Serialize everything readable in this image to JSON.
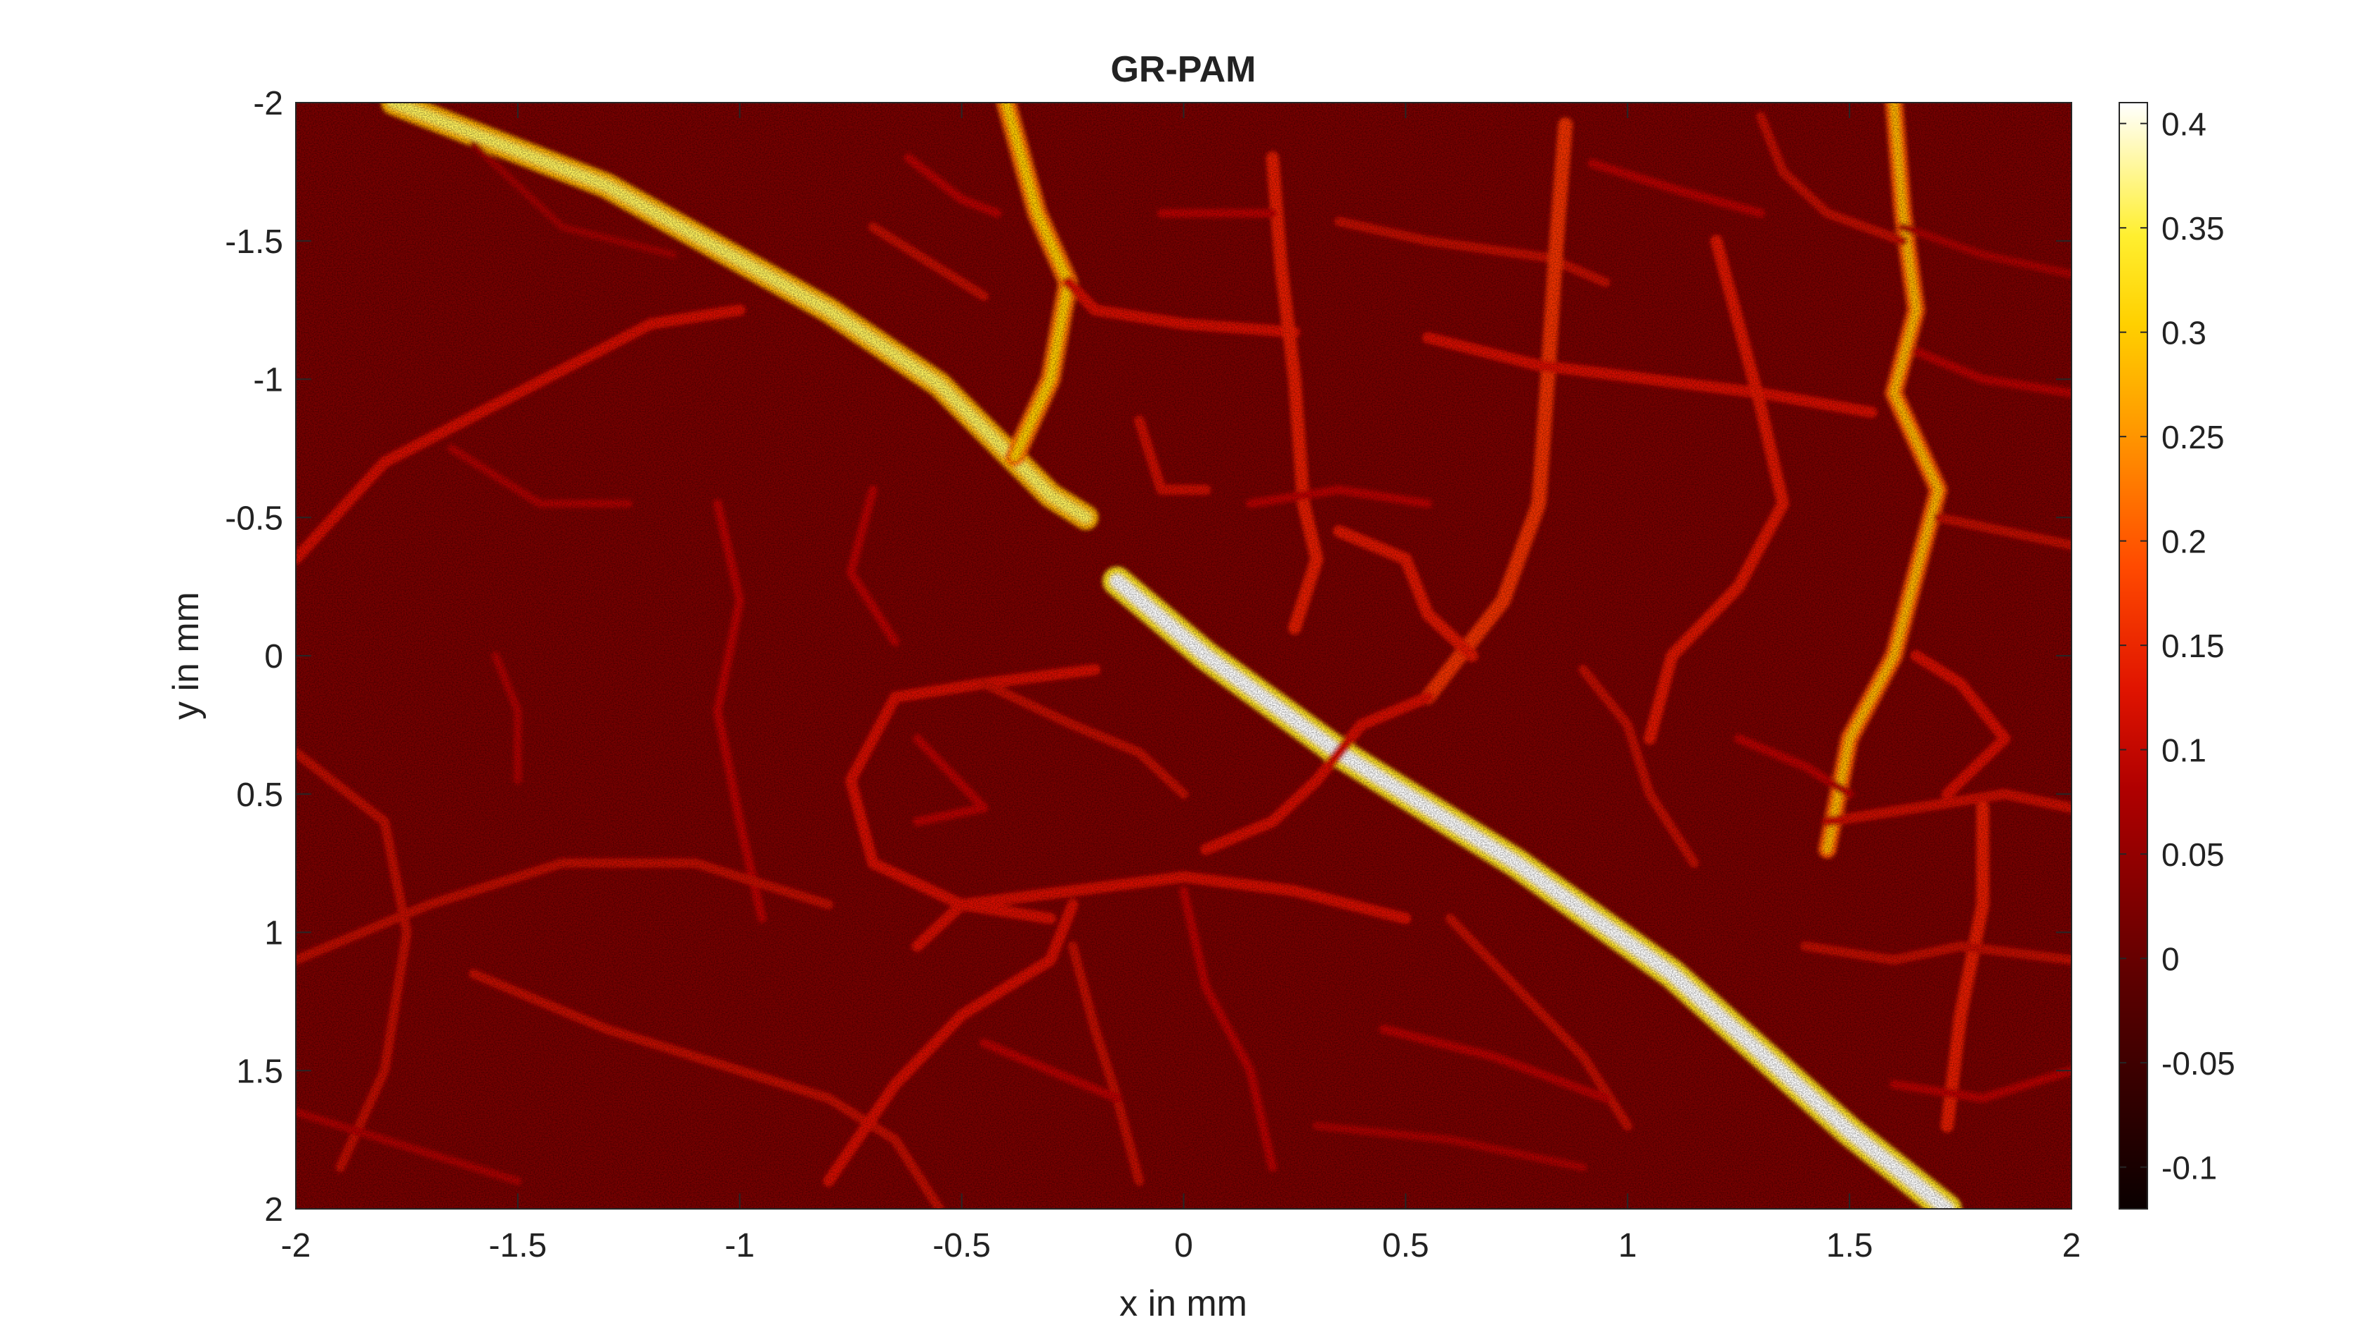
{
  "chart_data": {
    "type": "heatmap",
    "title": "GR-PAM",
    "xlabel": "x in mm",
    "ylabel": "y in mm",
    "xlim": [
      -2,
      2
    ],
    "ylim": [
      -2,
      2
    ],
    "y_direction": "reversed",
    "x_ticks": [
      -2,
      -1.5,
      -1,
      -0.5,
      0,
      0.5,
      1,
      1.5,
      2
    ],
    "y_ticks": [
      -2,
      -1.5,
      -1,
      -0.5,
      0,
      0.5,
      1,
      1.5,
      2
    ],
    "x_tick_labels": [
      "-2",
      "-1.5",
      "-1",
      "-0.5",
      "0",
      "0.5",
      "1",
      "1.5",
      "2"
    ],
    "y_tick_labels": [
      "-2",
      "-1.5",
      "-1",
      "-0.5",
      "0",
      "0.5",
      "1",
      "1.5",
      "2"
    ],
    "colormap": "hot",
    "colorbar": {
      "limits": [
        -0.12,
        0.41
      ],
      "ticks": [
        -0.1,
        -0.05,
        0,
        0.05,
        0.1,
        0.15,
        0.2,
        0.25,
        0.3,
        0.35,
        0.4
      ],
      "tick_labels": [
        "-0.1",
        "-0.05",
        "0",
        "0.05",
        "0.1",
        "0.15",
        "0.2",
        "0.25",
        "0.3",
        "0.35",
        "0.4"
      ]
    },
    "background_value": 0.02,
    "vessels": [
      {
        "points": [
          [
            -1.78,
            -2.0
          ],
          [
            -1.3,
            -1.7
          ],
          [
            -0.8,
            -1.25
          ],
          [
            -0.55,
            -0.98
          ],
          [
            -0.3,
            -0.58
          ],
          [
            -0.22,
            -0.5
          ]
        ],
        "value": 0.28
      },
      {
        "points": [
          [
            -0.15,
            -0.27
          ],
          [
            0.05,
            0.0
          ],
          [
            0.35,
            0.35
          ],
          [
            0.75,
            0.75
          ],
          [
            1.1,
            1.15
          ],
          [
            1.5,
            1.72
          ],
          [
            1.72,
            2.0
          ]
        ],
        "value": 0.33
      },
      {
        "points": [
          [
            -0.4,
            -2.0
          ],
          [
            -0.33,
            -1.6
          ],
          [
            -0.26,
            -1.35
          ],
          [
            -0.3,
            -1.0
          ],
          [
            -0.38,
            -0.72
          ]
        ],
        "value": 0.22
      },
      {
        "points": [
          [
            -0.26,
            -1.35
          ],
          [
            -0.2,
            -1.25
          ],
          [
            0.0,
            -1.2
          ],
          [
            0.25,
            -1.17
          ]
        ],
        "value": 0.12
      },
      {
        "points": [
          [
            -0.7,
            -1.55
          ],
          [
            -0.55,
            -1.4
          ],
          [
            -0.45,
            -1.3
          ]
        ],
        "value": 0.1
      },
      {
        "points": [
          [
            -0.62,
            -1.8
          ],
          [
            -0.5,
            -1.65
          ],
          [
            -0.42,
            -1.6
          ]
        ],
        "value": 0.09
      },
      {
        "points": [
          [
            0.2,
            -1.8
          ],
          [
            0.22,
            -1.4
          ],
          [
            0.25,
            -1.0
          ],
          [
            0.27,
            -0.55
          ],
          [
            0.3,
            -0.35
          ],
          [
            0.25,
            -0.1
          ]
        ],
        "value": 0.14
      },
      {
        "points": [
          [
            -0.05,
            -1.6
          ],
          [
            0.2,
            -1.6
          ]
        ],
        "value": 0.09
      },
      {
        "points": [
          [
            0.35,
            -1.57
          ],
          [
            0.55,
            -1.5
          ],
          [
            0.82,
            -1.44
          ],
          [
            0.95,
            -1.35
          ]
        ],
        "value": 0.1
      },
      {
        "points": [
          [
            0.86,
            -1.92
          ],
          [
            0.84,
            -1.5
          ],
          [
            0.82,
            -1.0
          ],
          [
            0.8,
            -0.55
          ],
          [
            0.72,
            -0.2
          ],
          [
            0.55,
            0.15
          ]
        ],
        "value": 0.16
      },
      {
        "points": [
          [
            0.55,
            -1.15
          ],
          [
            0.8,
            -1.05
          ],
          [
            1.05,
            -1.0
          ],
          [
            1.3,
            -0.95
          ],
          [
            1.55,
            -0.88
          ]
        ],
        "value": 0.12
      },
      {
        "points": [
          [
            1.6,
            -2.0
          ],
          [
            1.62,
            -1.6
          ],
          [
            1.65,
            -1.25
          ],
          [
            1.6,
            -0.95
          ],
          [
            1.7,
            -0.6
          ],
          [
            1.65,
            -0.3
          ],
          [
            1.6,
            0.0
          ],
          [
            1.5,
            0.3
          ],
          [
            1.45,
            0.7
          ]
        ],
        "value": 0.2
      },
      {
        "points": [
          [
            1.3,
            -1.95
          ],
          [
            1.35,
            -1.75
          ],
          [
            1.45,
            -1.6
          ],
          [
            1.62,
            -1.5
          ]
        ],
        "value": 0.1
      },
      {
        "points": [
          [
            0.92,
            -1.78
          ],
          [
            1.12,
            -1.68
          ],
          [
            1.3,
            -1.6
          ]
        ],
        "value": 0.09
      },
      {
        "points": [
          [
            1.2,
            -1.5
          ],
          [
            1.25,
            -1.2
          ],
          [
            1.3,
            -0.9
          ],
          [
            1.35,
            -0.55
          ],
          [
            1.25,
            -0.25
          ],
          [
            1.1,
            0.0
          ],
          [
            1.05,
            0.3
          ]
        ],
        "value": 0.13
      },
      {
        "points": [
          [
            1.7,
            -0.5
          ],
          [
            1.85,
            -0.45
          ],
          [
            2.0,
            -0.4
          ]
        ],
        "value": 0.1
      },
      {
        "points": [
          [
            1.62,
            -1.55
          ],
          [
            1.8,
            -1.45
          ],
          [
            2.0,
            -1.38
          ]
        ],
        "value": 0.08
      },
      {
        "points": [
          [
            1.65,
            -1.1
          ],
          [
            1.8,
            -1.0
          ],
          [
            2.0,
            -0.95
          ]
        ],
        "value": 0.09
      },
      {
        "points": [
          [
            -2.0,
            -0.35
          ],
          [
            -1.8,
            -0.7
          ],
          [
            -1.5,
            -0.95
          ],
          [
            -1.2,
            -1.2
          ],
          [
            -1.0,
            -1.25
          ]
        ],
        "value": 0.12
      },
      {
        "points": [
          [
            -1.65,
            -0.75
          ],
          [
            -1.45,
            -0.55
          ],
          [
            -1.25,
            -0.55
          ]
        ],
        "value": 0.08
      },
      {
        "points": [
          [
            -1.6,
            -1.85
          ],
          [
            -1.4,
            -1.55
          ],
          [
            -1.15,
            -1.45
          ]
        ],
        "value": 0.07
      },
      {
        "points": [
          [
            -1.05,
            -0.55
          ],
          [
            -1.0,
            -0.2
          ],
          [
            -1.05,
            0.2
          ],
          [
            -1.0,
            0.6
          ],
          [
            -0.95,
            0.95
          ]
        ],
        "value": 0.09
      },
      {
        "points": [
          [
            -2.0,
            1.1
          ],
          [
            -1.7,
            0.9
          ],
          [
            -1.4,
            0.75
          ],
          [
            -1.1,
            0.75
          ],
          [
            -0.8,
            0.9
          ]
        ],
        "value": 0.1
      },
      {
        "points": [
          [
            -2.0,
            0.35
          ],
          [
            -1.8,
            0.6
          ],
          [
            -1.75,
            1.0
          ],
          [
            -1.8,
            1.5
          ],
          [
            -1.9,
            1.85
          ]
        ],
        "value": 0.1
      },
      {
        "points": [
          [
            -1.55,
            0.0
          ],
          [
            -1.5,
            0.2
          ],
          [
            -1.5,
            0.45
          ]
        ],
        "value": 0.08
      },
      {
        "points": [
          [
            -1.6,
            1.15
          ],
          [
            -1.3,
            1.35
          ],
          [
            -1.0,
            1.5
          ],
          [
            -0.8,
            1.6
          ],
          [
            -0.65,
            1.75
          ],
          [
            -0.55,
            2.0
          ]
        ],
        "value": 0.1
      },
      {
        "points": [
          [
            -2.0,
            1.65
          ],
          [
            -1.7,
            1.8
          ],
          [
            -1.5,
            1.9
          ]
        ],
        "value": 0.08
      },
      {
        "points": [
          [
            -0.2,
            0.05
          ],
          [
            -0.45,
            0.1
          ],
          [
            -0.65,
            0.15
          ],
          [
            -0.75,
            0.45
          ],
          [
            -0.7,
            0.75
          ],
          [
            -0.5,
            0.9
          ],
          [
            -0.3,
            0.95
          ]
        ],
        "value": 0.12
      },
      {
        "points": [
          [
            -0.45,
            0.1
          ],
          [
            -0.25,
            0.25
          ],
          [
            -0.1,
            0.35
          ],
          [
            0.0,
            0.5
          ]
        ],
        "value": 0.1
      },
      {
        "points": [
          [
            -0.6,
            0.3
          ],
          [
            -0.45,
            0.55
          ],
          [
            -0.6,
            0.6
          ]
        ],
        "value": 0.09
      },
      {
        "points": [
          [
            -0.6,
            1.05
          ],
          [
            -0.5,
            0.9
          ],
          [
            -0.25,
            0.85
          ],
          [
            0.0,
            0.8
          ],
          [
            0.25,
            0.85
          ],
          [
            0.5,
            0.95
          ]
        ],
        "value": 0.12
      },
      {
        "points": [
          [
            -0.8,
            1.9
          ],
          [
            -0.65,
            1.55
          ],
          [
            -0.5,
            1.3
          ],
          [
            -0.3,
            1.1
          ],
          [
            -0.25,
            0.9
          ]
        ],
        "value": 0.12
      },
      {
        "points": [
          [
            -0.25,
            1.05
          ],
          [
            -0.2,
            1.35
          ],
          [
            -0.15,
            1.6
          ],
          [
            -0.1,
            1.9
          ]
        ],
        "value": 0.1
      },
      {
        "points": [
          [
            -0.45,
            1.4
          ],
          [
            -0.3,
            1.5
          ],
          [
            -0.15,
            1.6
          ]
        ],
        "value": 0.09
      },
      {
        "points": [
          [
            0.0,
            0.85
          ],
          [
            0.05,
            1.2
          ],
          [
            0.15,
            1.5
          ],
          [
            0.2,
            1.85
          ]
        ],
        "value": 0.09
      },
      {
        "points": [
          [
            0.6,
            0.95
          ],
          [
            0.75,
            1.2
          ],
          [
            0.9,
            1.45
          ],
          [
            1.0,
            1.7
          ]
        ],
        "value": 0.1
      },
      {
        "points": [
          [
            0.45,
            1.35
          ],
          [
            0.7,
            1.45
          ],
          [
            0.95,
            1.6
          ]
        ],
        "value": 0.09
      },
      {
        "points": [
          [
            0.3,
            1.7
          ],
          [
            0.6,
            1.75
          ],
          [
            0.9,
            1.85
          ]
        ],
        "value": 0.08
      },
      {
        "points": [
          [
            0.35,
            -0.45
          ],
          [
            0.5,
            -0.35
          ],
          [
            0.55,
            -0.15
          ],
          [
            0.65,
            0.0
          ]
        ],
        "value": 0.13
      },
      {
        "points": [
          [
            0.15,
            -0.55
          ],
          [
            0.35,
            -0.6
          ],
          [
            0.55,
            -0.55
          ]
        ],
        "value": 0.09
      },
      {
        "points": [
          [
            0.55,
            0.15
          ],
          [
            0.4,
            0.25
          ],
          [
            0.3,
            0.45
          ],
          [
            0.2,
            0.6
          ],
          [
            0.05,
            0.7
          ]
        ],
        "value": 0.12
      },
      {
        "points": [
          [
            0.9,
            0.05
          ],
          [
            1.0,
            0.25
          ],
          [
            1.05,
            0.5
          ],
          [
            1.15,
            0.75
          ]
        ],
        "value": 0.1
      },
      {
        "points": [
          [
            1.45,
            0.6
          ],
          [
            1.65,
            0.55
          ],
          [
            1.85,
            0.5
          ],
          [
            2.0,
            0.55
          ]
        ],
        "value": 0.11
      },
      {
        "points": [
          [
            1.8,
            0.55
          ],
          [
            1.8,
            0.9
          ],
          [
            1.75,
            1.3
          ],
          [
            1.72,
            1.7
          ]
        ],
        "value": 0.14
      },
      {
        "points": [
          [
            1.4,
            1.05
          ],
          [
            1.6,
            1.1
          ],
          [
            1.75,
            1.05
          ],
          [
            2.0,
            1.1
          ]
        ],
        "value": 0.1
      },
      {
        "points": [
          [
            1.6,
            1.55
          ],
          [
            1.8,
            1.6
          ],
          [
            2.0,
            1.5
          ]
        ],
        "value": 0.09
      },
      {
        "points": [
          [
            1.25,
            0.3
          ],
          [
            1.4,
            0.4
          ],
          [
            1.5,
            0.5
          ]
        ],
        "value": 0.09
      },
      {
        "points": [
          [
            1.65,
            0.0
          ],
          [
            1.75,
            0.1
          ],
          [
            1.85,
            0.3
          ],
          [
            1.72,
            0.5
          ]
        ],
        "value": 0.12
      },
      {
        "points": [
          [
            -0.1,
            -0.85
          ],
          [
            -0.05,
            -0.6
          ],
          [
            0.05,
            -0.6
          ]
        ],
        "value": 0.11
      },
      {
        "points": [
          [
            -0.7,
            -0.6
          ],
          [
            -0.75,
            -0.3
          ],
          [
            -0.65,
            -0.05
          ]
        ],
        "value": 0.09
      }
    ]
  }
}
